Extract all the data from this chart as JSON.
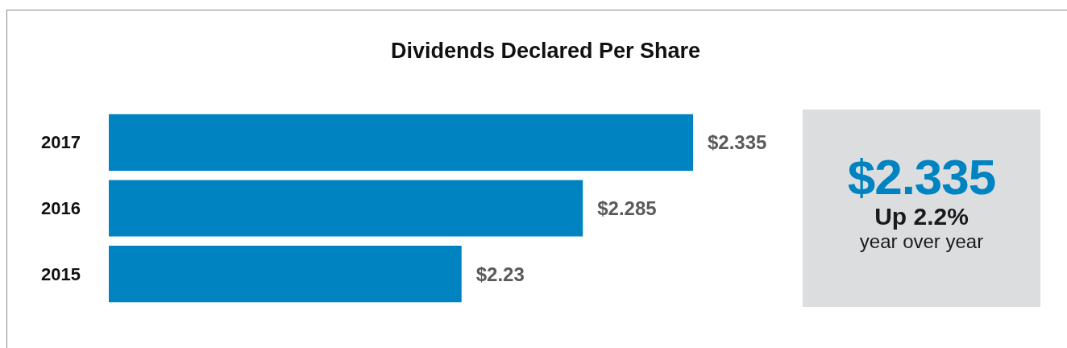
{
  "chart_data": {
    "type": "bar",
    "orientation": "horizontal",
    "title": "Dividends Declared Per Share",
    "categories": [
      "2017",
      "2016",
      "2015"
    ],
    "values": [
      2.335,
      2.285,
      2.23
    ],
    "value_labels": [
      "$2.335",
      "$2.285",
      "$2.23"
    ],
    "color": "#0083c1",
    "xlim": [
      2.07,
      2.335
    ],
    "annotations": [
      "$2.335",
      "Up 2.2%",
      "year over year"
    ]
  }
}
